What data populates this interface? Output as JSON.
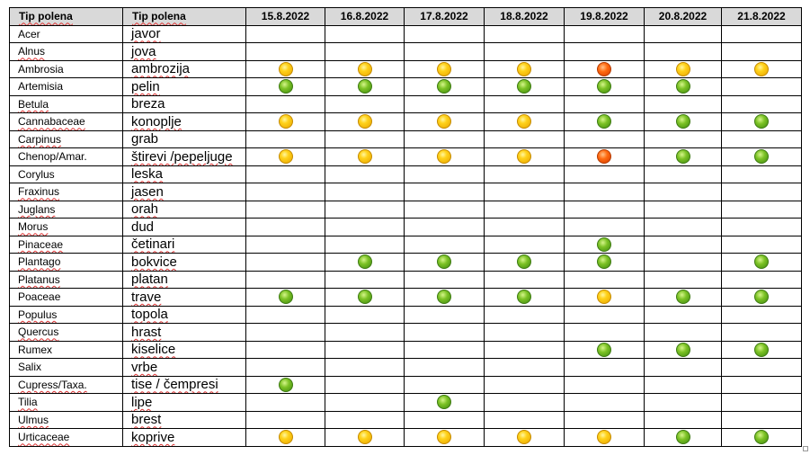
{
  "header": {
    "col_latin": "Tip polena",
    "col_local": "Tip polena",
    "dates": [
      "15.8.2022",
      "16.8.2022",
      "17.8.2022",
      "18.8.2022",
      "19.8.2022",
      "20.8.2022",
      "21.8.2022"
    ]
  },
  "legend_colors": {
    "yellow": "#ffd21a",
    "green": "#7cc225",
    "red": "#ff6a10"
  },
  "rows": [
    {
      "latin": "Acer",
      "local": "javor",
      "levels": [
        "",
        "",
        "",
        "",
        "",
        "",
        ""
      ]
    },
    {
      "latin": "Alnus",
      "local": "jova",
      "levels": [
        "",
        "",
        "",
        "",
        "",
        "",
        ""
      ]
    },
    {
      "latin": "Ambrosia",
      "local": "ambrozija",
      "levels": [
        "yellow",
        "yellow",
        "yellow",
        "yellow",
        "red",
        "yellow",
        "yellow"
      ]
    },
    {
      "latin": "Artemisia",
      "local": "pelin",
      "levels": [
        "green",
        "green",
        "green",
        "green",
        "green",
        "green",
        ""
      ]
    },
    {
      "latin": "Betula",
      "local": "breza",
      "levels": [
        "",
        "",
        "",
        "",
        "",
        "",
        ""
      ]
    },
    {
      "latin": "Cannabaceae",
      "local": "konoplje",
      "levels": [
        "yellow",
        "yellow",
        "yellow",
        "yellow",
        "green",
        "green",
        "green"
      ]
    },
    {
      "latin": "Carpinus",
      "local": "grab",
      "levels": [
        "",
        "",
        "",
        "",
        "",
        "",
        ""
      ]
    },
    {
      "latin": "Chenop/Amar.",
      "local": "štirevi /pepeljuge",
      "levels": [
        "yellow",
        "yellow",
        "yellow",
        "yellow",
        "red",
        "green",
        "green"
      ]
    },
    {
      "latin": "Corylus",
      "local": "leska",
      "levels": [
        "",
        "",
        "",
        "",
        "",
        "",
        ""
      ]
    },
    {
      "latin": "Fraxinus",
      "local": "jasen",
      "levels": [
        "",
        "",
        "",
        "",
        "",
        "",
        ""
      ]
    },
    {
      "latin": "Juglans",
      "local": "orah",
      "levels": [
        "",
        "",
        "",
        "",
        "",
        "",
        ""
      ]
    },
    {
      "latin": "Morus",
      "local": "dud",
      "levels": [
        "",
        "",
        "",
        "",
        "",
        "",
        ""
      ]
    },
    {
      "latin": "Pinaceae",
      "local": "četinari",
      "levels": [
        "",
        "",
        "",
        "",
        "green",
        "",
        ""
      ]
    },
    {
      "latin": "Plantago",
      "local": "bokvice",
      "levels": [
        "",
        "green",
        "green",
        "green",
        "green",
        "",
        "green"
      ]
    },
    {
      "latin": "Platanus",
      "local": "platan",
      "levels": [
        "",
        "",
        "",
        "",
        "",
        "",
        ""
      ]
    },
    {
      "latin": "Poaceae",
      "local": "trave",
      "levels": [
        "green",
        "green",
        "green",
        "green",
        "yellow",
        "green",
        "green"
      ]
    },
    {
      "latin": "Populus",
      "local": "topola",
      "levels": [
        "",
        "",
        "",
        "",
        "",
        "",
        ""
      ]
    },
    {
      "latin": "Quercus",
      "local": "hrast",
      "levels": [
        "",
        "",
        "",
        "",
        "",
        "",
        ""
      ]
    },
    {
      "latin": "Rumex",
      "local": "kiselice",
      "levels": [
        "",
        "",
        "",
        "",
        "green",
        "green",
        "green"
      ]
    },
    {
      "latin": "Salix",
      "local": "vrbe",
      "levels": [
        "",
        "",
        "",
        "",
        "",
        "",
        ""
      ]
    },
    {
      "latin": "Cupress/Taxa.",
      "local": "tise / čempresi",
      "levels": [
        "green",
        "",
        "",
        "",
        "",
        "",
        ""
      ]
    },
    {
      "latin": "Tilia",
      "local": "lipe",
      "levels": [
        "",
        "",
        "green",
        "",
        "",
        "",
        ""
      ]
    },
    {
      "latin": "Ulmus",
      "local": "brest",
      "levels": [
        "",
        "",
        "",
        "",
        "",
        "",
        ""
      ]
    },
    {
      "latin": "Urticaceae",
      "local": "koprive",
      "levels": [
        "yellow",
        "yellow",
        "yellow",
        "yellow",
        "yellow",
        "green",
        "green"
      ]
    }
  ]
}
